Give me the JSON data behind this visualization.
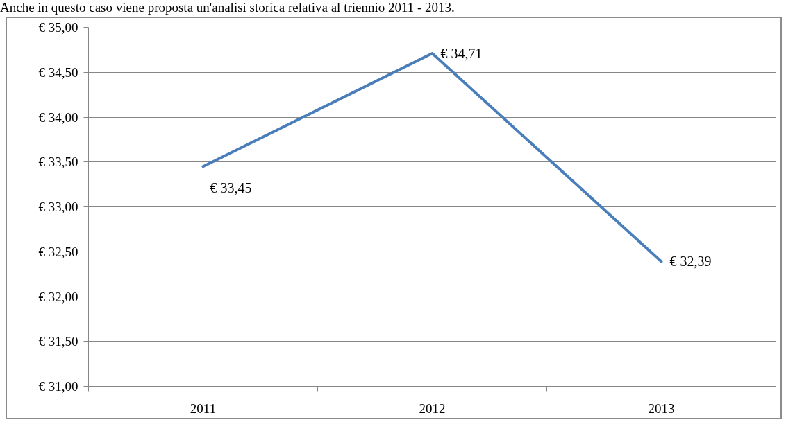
{
  "chart_data": {
    "type": "line",
    "annotations": [
      "Anche in questo caso viene proposta un'analisi storica relativa al triennio 2011 - 2013."
    ],
    "categories": [
      "2011",
      "2012",
      "2013"
    ],
    "series": [
      {
        "color": "#4a7ebb",
        "values": [
          33.45,
          34.71,
          32.39
        ],
        "value_labels": [
          "€ 33,45",
          "€ 34,71",
          "€ 32,39"
        ]
      }
    ],
    "ylim": [
      31,
      35
    ],
    "yticks": [
      {
        "value": 31,
        "label": "€ 31,00"
      },
      {
        "value": 31.5,
        "label": "€ 31,50"
      },
      {
        "value": 32,
        "label": "€ 32,00"
      },
      {
        "value": 32.5,
        "label": "€ 32,50"
      },
      {
        "value": 33,
        "label": "€ 33,00"
      },
      {
        "value": 33.5,
        "label": "€ 33,50"
      },
      {
        "value": 34,
        "label": "€ 34,00"
      },
      {
        "value": 34.5,
        "label": "€ 34,50"
      },
      {
        "value": 35,
        "label": "€ 35,00"
      }
    ],
    "grid": "y",
    "line_style": "solid"
  }
}
